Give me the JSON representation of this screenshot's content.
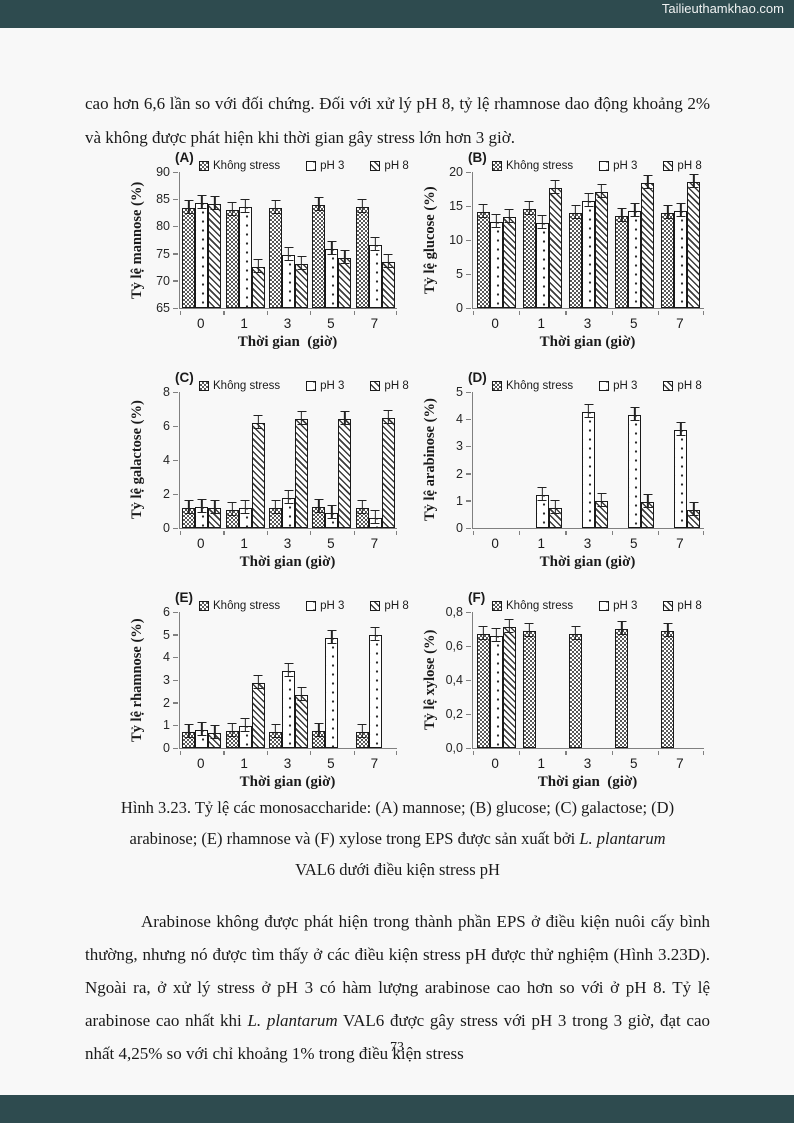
{
  "watermark": "Tailieuthamkhao.com",
  "page_number": "73",
  "accent_colors": {
    "banner": "#2e4b4f",
    "page_bg": "#f8f8f8",
    "axis": "#808080"
  },
  "paragraph_top": "cao hơn 6,6 lần so với đối chứng. Đối với xử lý pH 8, tỷ lệ rhamnose dao động khoảng 2% và không được phát hiện khi thời gian gây stress lớn hơn 3 giờ.",
  "caption": {
    "line1": "Hình 3.23. Tỷ lệ các monosaccharide: (A) mannose; (B) glucose; (C) galactose; (D)",
    "line2_normal": "arabinose; (E) rhamnose và (F) xylose trong EPS được sản xuất bởi ",
    "line2_italic": "L. plantarum",
    "line3": "VAL6 dưới điều kiện stress pH"
  },
  "paragraph_bottom": {
    "before": "Arabinose không được phát hiện trong thành phần EPS ở điều kiện nuôi cấy bình thường, nhưng nó được tìm thấy ở các điều kiện stress pH được thử nghiệm (Hình 3.23D). Ngoài ra, ở xử lý stress ở pH 3 có hàm lượng arabinose cao hơn so với ở pH 8. Tỷ lệ arabinose cao nhất khi ",
    "italic": "L. plantarum",
    "after": " VAL6 được gây stress với pH 3 trong 3 giờ, đạt cao nhất 4,25% so với chỉ khoảng 1% trong điều kiện stress"
  },
  "legend": [
    "Không stress",
    "pH 3",
    "pH 8"
  ],
  "chart_data": [
    {
      "letter": "A",
      "type": "bar",
      "title": "mannose",
      "ylabel": "Tỷ lệ mannose (%)",
      "xlabel": "Thời gian  (giờ)",
      "categories": [
        "0",
        "1",
        "3",
        "5",
        "7"
      ],
      "ylim": [
        65,
        90
      ],
      "ytick_values": [
        65,
        70,
        75,
        80,
        85,
        90
      ],
      "ytick_labels": [
        "65",
        "70",
        "75",
        "80",
        "85",
        "90"
      ],
      "series": [
        {
          "name": "Không stress",
          "values": [
            83.4,
            83.1,
            83.4,
            84.0,
            83.6
          ]
        },
        {
          "name": "pH 3",
          "values": [
            84.3,
            83.5,
            74.8,
            75.8,
            76.6
          ]
        },
        {
          "name": "pH 8",
          "values": [
            84.1,
            72.5,
            73.1,
            74.2,
            73.5
          ]
        }
      ]
    },
    {
      "letter": "B",
      "type": "bar",
      "title": "glucose",
      "ylabel": "Tỷ lệ glucose (%)",
      "xlabel": "Thời gian (giờ)",
      "categories": [
        "0",
        "1",
        "3",
        "5",
        "7"
      ],
      "ylim": [
        0,
        20
      ],
      "ytick_values": [
        0,
        5,
        10,
        15,
        20
      ],
      "ytick_labels": [
        "0",
        "5",
        "10",
        "15",
        "20"
      ],
      "series": [
        {
          "name": "Không stress",
          "values": [
            14.1,
            14.5,
            14.0,
            13.5,
            13.9
          ]
        },
        {
          "name": "pH 3",
          "values": [
            12.7,
            12.5,
            15.7,
            14.3,
            14.2
          ]
        },
        {
          "name": "pH 8",
          "values": [
            13.4,
            17.6,
            17.1,
            18.4,
            18.6
          ]
        }
      ]
    },
    {
      "letter": "C",
      "type": "bar",
      "title": "galactose",
      "ylabel": "Tỷ lệ galactose (%)",
      "xlabel": "Thời gian (giờ)",
      "categories": [
        "0",
        "1",
        "3",
        "5",
        "7"
      ],
      "ylim": [
        0,
        8
      ],
      "ytick_values": [
        0,
        2,
        4,
        6,
        8
      ],
      "ytick_labels": [
        "0",
        "2",
        "4",
        "6",
        "8"
      ],
      "series": [
        {
          "name": "Không stress",
          "values": [
            1.15,
            1.05,
            1.2,
            1.25,
            1.2
          ]
        },
        {
          "name": "pH 3",
          "values": [
            1.25,
            1.2,
            1.75,
            0.9,
            0.6
          ]
        },
        {
          "name": "pH 8",
          "values": [
            1.2,
            6.2,
            6.4,
            6.4,
            6.45
          ]
        }
      ]
    },
    {
      "letter": "D",
      "type": "bar",
      "title": "arabinose",
      "ylabel": "Tỷ lệ arabinose (%)",
      "xlabel": "Thời gian (giờ)",
      "categories": [
        "0",
        "1",
        "3",
        "5",
        "7"
      ],
      "ylim": [
        0,
        5
      ],
      "ytick_values": [
        0,
        1,
        2,
        3,
        4,
        5
      ],
      "ytick_labels": [
        "0",
        "1",
        "2",
        "3",
        "4",
        "5"
      ],
      "series": [
        {
          "name": "Không stress",
          "values": [
            0,
            0,
            0,
            0,
            0
          ]
        },
        {
          "name": "pH 3",
          "values": [
            0,
            1.2,
            4.25,
            4.15,
            3.6
          ]
        },
        {
          "name": "pH 8",
          "values": [
            0,
            0.75,
            1.0,
            0.97,
            0.68
          ]
        }
      ]
    },
    {
      "letter": "E",
      "type": "bar",
      "title": "rhamnose",
      "ylabel": "Tỷ lệ rhamnose (%)",
      "xlabel": "Thời gian (giờ)",
      "categories": [
        "0",
        "1",
        "3",
        "5",
        "7"
      ],
      "ylim": [
        0,
        6
      ],
      "ytick_values": [
        0,
        1,
        2,
        3,
        4,
        5,
        6
      ],
      "ytick_labels": [
        "0",
        "1",
        "2",
        "3",
        "4",
        "5",
        "6"
      ],
      "series": [
        {
          "name": "Không stress",
          "values": [
            0.72,
            0.75,
            0.72,
            0.73,
            0.7
          ]
        },
        {
          "name": "pH 3",
          "values": [
            0.78,
            0.97,
            3.38,
            4.85,
            5.0
          ]
        },
        {
          "name": "pH 8",
          "values": [
            0.68,
            2.88,
            2.35,
            0,
            0
          ]
        }
      ]
    },
    {
      "letter": "F",
      "type": "bar",
      "title": "xylose",
      "ylabel": "Tỷ lệ xylose (%)",
      "xlabel": "Thời gian  (giờ)",
      "categories": [
        "0",
        "1",
        "3",
        "5",
        "7"
      ],
      "ylim": [
        0,
        0.8
      ],
      "ytick_values": [
        0,
        0.2,
        0.4,
        0.6,
        0.8
      ],
      "ytick_labels": [
        "0,0",
        "0,2",
        "0,4",
        "0,6",
        "0,8"
      ],
      "series": [
        {
          "name": "Không stress",
          "values": [
            0.67,
            0.69,
            0.67,
            0.7,
            0.69
          ]
        },
        {
          "name": "pH 3",
          "values": [
            0.66,
            0,
            0,
            0,
            0
          ]
        },
        {
          "name": "pH 8",
          "values": [
            0.71,
            0,
            0,
            0,
            0
          ]
        }
      ]
    }
  ]
}
